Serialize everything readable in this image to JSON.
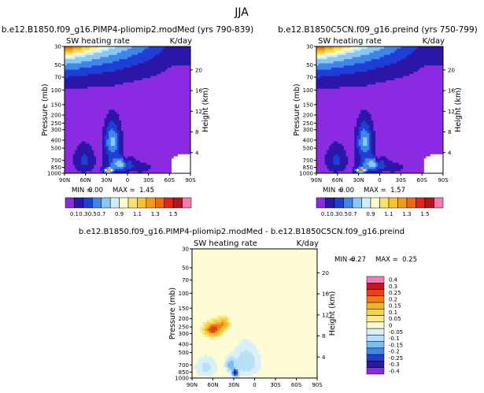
{
  "page": {
    "title": "JJA"
  },
  "colors": {
    "mean": [
      "#8a2be2",
      "#2b16a8",
      "#1e3fd6",
      "#3f86e8",
      "#8cc6f2",
      "#cdeefb",
      "#fdfcc6",
      "#fbe36b",
      "#f6c22e",
      "#f29a1a",
      "#ee6a12",
      "#e3231e",
      "#b3141c",
      "#f27ab5"
    ],
    "diff": [
      "#8a2be2",
      "#2b16a8",
      "#1e3fd6",
      "#3f86e8",
      "#7cbef0",
      "#b7e0f8",
      "#d9f0fb",
      "#fdfcd2",
      "#fbe98a",
      "#f8d24a",
      "#f5b32a",
      "#ef7d1c",
      "#e4401c",
      "#c01a1e",
      "#f27ab5"
    ]
  },
  "chart_data": [
    {
      "type": "heatmap",
      "title": "b.e12.B1850.f09_g16.PIMP4-pliomip2.modMed (yrs 790-839)",
      "variable": "SW heating rate",
      "units": "K/day",
      "ylabel": "Pressure (mb)",
      "ylabel_right": "Height (km)",
      "x_ticks": [
        "90N",
        "60N",
        "30N",
        "0",
        "30S",
        "60S",
        "90S"
      ],
      "y_ticks": [
        "30",
        "50",
        "70",
        "100",
        "150",
        "200",
        "250",
        "300",
        "400",
        "500",
        "700",
        "850",
        "1000"
      ],
      "height_ticks": [
        "20",
        "16",
        "12",
        "8",
        "4"
      ],
      "min_label": "MIN =",
      "min_value": "0.00",
      "max_label": "MAX =",
      "max_value": "1.45",
      "levels": [
        "0.1",
        "0.3",
        "0.5",
        "0.7",
        "0.9",
        "1.1",
        "1.3",
        "1.5"
      ]
    },
    {
      "type": "heatmap",
      "title": "b.e12.B1850C5CN.f09_g16.preind (yrs 750-799)",
      "variable": "SW heating rate",
      "units": "K/day",
      "ylabel": "Pressure (mb)",
      "ylabel_right": "Height (km)",
      "x_ticks": [
        "90N",
        "60N",
        "30N",
        "0",
        "30S",
        "60S",
        "90S"
      ],
      "y_ticks": [
        "30",
        "50",
        "70",
        "100",
        "150",
        "200",
        "250",
        "300",
        "400",
        "500",
        "700",
        "850",
        "1000"
      ],
      "height_ticks": [
        "20",
        "16",
        "12",
        "8",
        "4"
      ],
      "min_label": "MIN =",
      "min_value": "0.00",
      "max_label": "MAX =",
      "max_value": "1.57",
      "levels": [
        "0.1",
        "0.3",
        "0.5",
        "0.7",
        "0.9",
        "1.1",
        "1.3",
        "1.5"
      ]
    },
    {
      "type": "heatmap",
      "title": "b.e12.B1850.f09_g16.PIMP4-pliomip2.modMed - b.e12.B1850C5CN.f09_g16.preind",
      "variable": "SW heating rate",
      "units": "K/day",
      "ylabel": "Pressure (mb)",
      "ylabel_right": "Height (km)",
      "x_ticks": [
        "90N",
        "60N",
        "30N",
        "0",
        "30S",
        "60S",
        "90S"
      ],
      "y_ticks": [
        "30",
        "50",
        "70",
        "100",
        "150",
        "200",
        "250",
        "300",
        "400",
        "500",
        "700",
        "850",
        "1000"
      ],
      "height_ticks": [
        "20",
        "16",
        "12",
        "8",
        "4"
      ],
      "min_label": "MIN =",
      "min_value": "-0.27",
      "max_label": "MAX =",
      "max_value": "0.25",
      "levels": [
        "0.4",
        "0.3",
        "0.25",
        "0.2",
        "0.15",
        "0.1",
        "0.05",
        "0",
        "-0.05",
        "-0.1",
        "-0.15",
        "-0.2",
        "-0.25",
        "-0.3",
        "-0.4"
      ]
    }
  ]
}
